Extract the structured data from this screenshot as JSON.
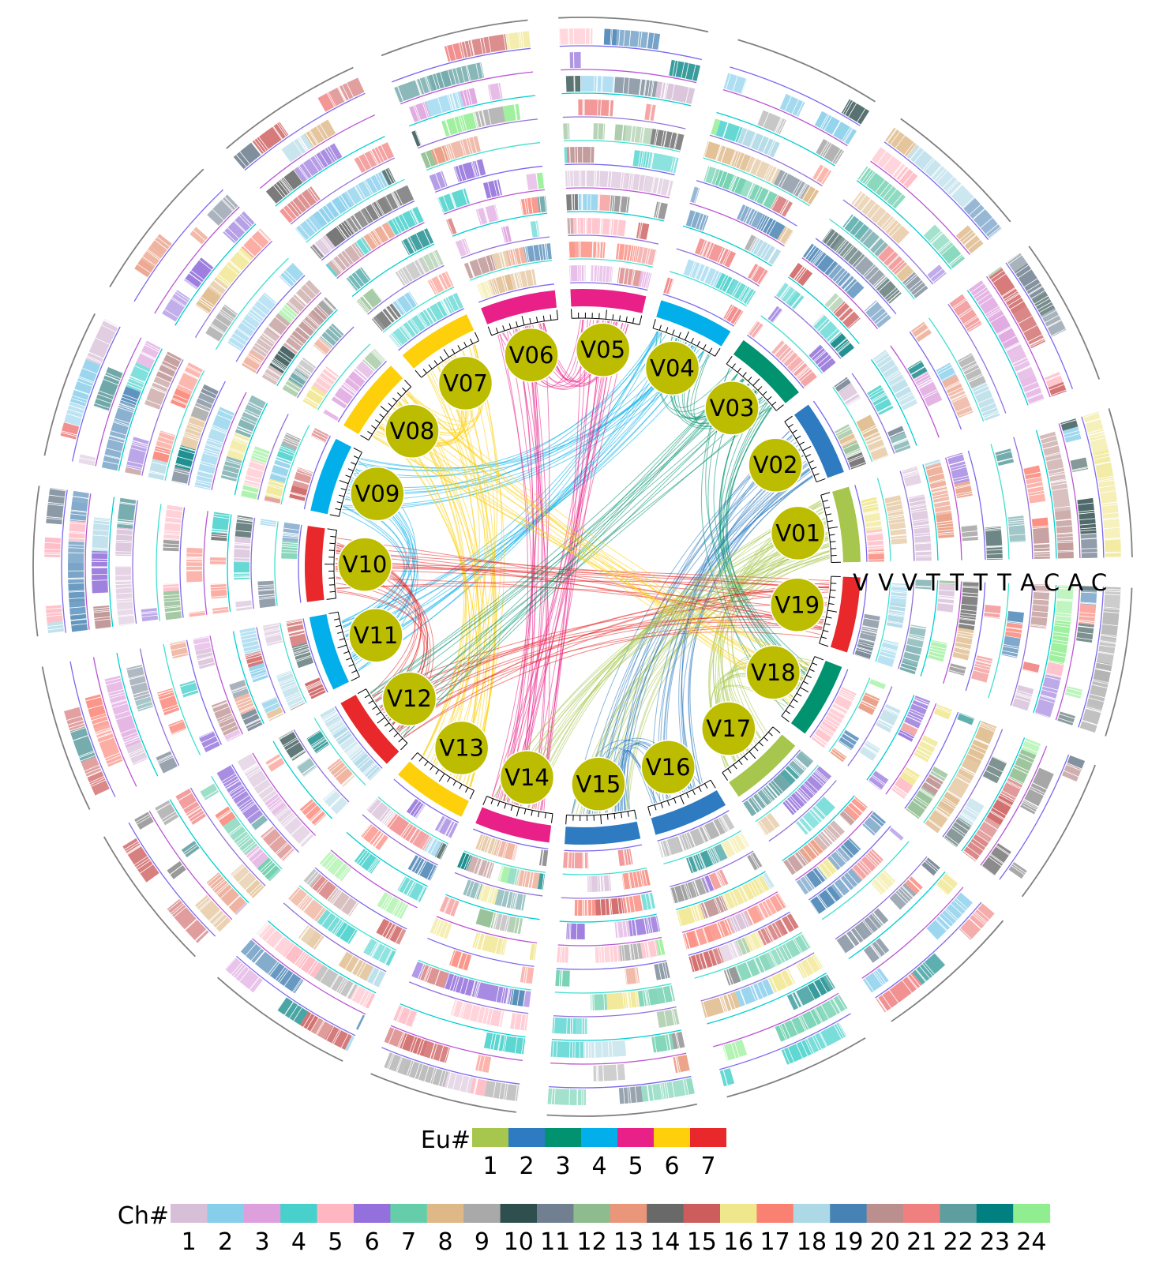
{
  "chart_data": {
    "type": "circos",
    "chromosomes": [
      {
        "label": "V01",
        "eu": 1
      },
      {
        "label": "V02",
        "eu": 2
      },
      {
        "label": "V03",
        "eu": 3
      },
      {
        "label": "V04",
        "eu": 4
      },
      {
        "label": "V05",
        "eu": 5
      },
      {
        "label": "V06",
        "eu": 5
      },
      {
        "label": "V07",
        "eu": 6
      },
      {
        "label": "V08",
        "eu": 6
      },
      {
        "label": "V09",
        "eu": 4
      },
      {
        "label": "V10",
        "eu": 7
      },
      {
        "label": "V11",
        "eu": 4
      },
      {
        "label": "V12",
        "eu": 7
      },
      {
        "label": "V13",
        "eu": 6
      },
      {
        "label": "V14",
        "eu": 5
      },
      {
        "label": "V15",
        "eu": 2
      },
      {
        "label": "V16",
        "eu": 2
      },
      {
        "label": "V17",
        "eu": 1
      },
      {
        "label": "V18",
        "eu": 3
      },
      {
        "label": "V19",
        "eu": 7
      }
    ],
    "track_labels": [
      "V",
      "V",
      "V",
      "T",
      "T",
      "T",
      "T",
      "A",
      "C",
      "A",
      "C"
    ],
    "eu_legend": {
      "title": "Eu#",
      "items": [
        {
          "label": "1",
          "color": "#a6c64d"
        },
        {
          "label": "2",
          "color": "#2e7bc1"
        },
        {
          "label": "3",
          "color": "#019270"
        },
        {
          "label": "4",
          "color": "#02afea"
        },
        {
          "label": "5",
          "color": "#e92088"
        },
        {
          "label": "6",
          "color": "#fdd00b"
        },
        {
          "label": "7",
          "color": "#e8282a"
        }
      ]
    },
    "ch_legend": {
      "title": "Ch#",
      "items": [
        {
          "label": "1",
          "color": "#d8bfd8"
        },
        {
          "label": "2",
          "color": "#87ceeb"
        },
        {
          "label": "3",
          "color": "#dda0dd"
        },
        {
          "label": "4",
          "color": "#48d1cc"
        },
        {
          "label": "5",
          "color": "#ffb6c1"
        },
        {
          "label": "6",
          "color": "#9370db"
        },
        {
          "label": "7",
          "color": "#66cdaa"
        },
        {
          "label": "8",
          "color": "#deb887"
        },
        {
          "label": "9",
          "color": "#a9a9a9"
        },
        {
          "label": "10",
          "color": "#2f4f4f"
        },
        {
          "label": "11",
          "color": "#708090"
        },
        {
          "label": "12",
          "color": "#8fbc8f"
        },
        {
          "label": "13",
          "color": "#e9967a"
        },
        {
          "label": "14",
          "color": "#696969"
        },
        {
          "label": "15",
          "color": "#cd5c5c"
        },
        {
          "label": "16",
          "color": "#f0e68c"
        },
        {
          "label": "17",
          "color": "#fa8072"
        },
        {
          "label": "18",
          "color": "#add8e6"
        },
        {
          "label": "19",
          "color": "#4682b4"
        },
        {
          "label": "20",
          "color": "#bc8f8f"
        },
        {
          "label": "21",
          "color": "#f08080"
        },
        {
          "label": "22",
          "color": "#5f9ea0"
        },
        {
          "label": "23",
          "color": "#008080"
        },
        {
          "label": "24",
          "color": "#90ee90"
        }
      ]
    },
    "links": [
      {
        "from": "V01",
        "to": "V17",
        "eu": 1
      },
      {
        "from": "V01",
        "to": "V15",
        "eu": 1
      },
      {
        "from": "V02",
        "to": "V16",
        "eu": 2
      },
      {
        "from": "V02",
        "to": "V15",
        "eu": 2
      },
      {
        "from": "V03",
        "to": "V18",
        "eu": 3
      },
      {
        "from": "V03",
        "to": "V04",
        "eu": 3
      },
      {
        "from": "V04",
        "to": "V09",
        "eu": 4
      },
      {
        "from": "V04",
        "to": "V11",
        "eu": 4
      },
      {
        "from": "V09",
        "to": "V11",
        "eu": 4
      },
      {
        "from": "V05",
        "to": "V06",
        "eu": 5
      },
      {
        "from": "V05",
        "to": "V14",
        "eu": 5
      },
      {
        "from": "V06",
        "to": "V14",
        "eu": 5
      },
      {
        "from": "V07",
        "to": "V08",
        "eu": 6
      },
      {
        "from": "V07",
        "to": "V13",
        "eu": 6
      },
      {
        "from": "V08",
        "to": "V13",
        "eu": 6
      },
      {
        "from": "V10",
        "to": "V19",
        "eu": 7
      },
      {
        "from": "V12",
        "to": "V19",
        "eu": 7
      },
      {
        "from": "V10",
        "to": "V12",
        "eu": 7
      },
      {
        "from": "V15",
        "to": "V16",
        "eu": 2
      },
      {
        "from": "V17",
        "to": "V18",
        "eu": 1
      },
      {
        "from": "V03",
        "to": "V12",
        "eu": 3
      },
      {
        "from": "V08",
        "to": "V18",
        "eu": 6
      },
      {
        "from": "V01",
        "to": "V14",
        "eu": 1
      }
    ]
  }
}
